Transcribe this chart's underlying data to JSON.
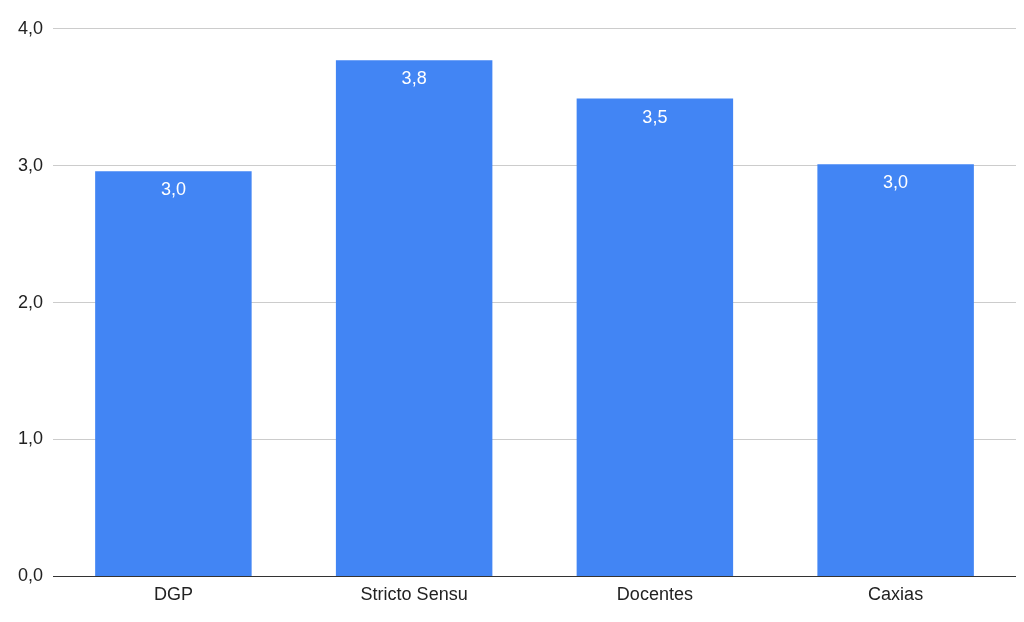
{
  "chart_data": {
    "type": "bar",
    "categories": [
      "DGP",
      "Stricto Sensu",
      "Docentes",
      "Caxias"
    ],
    "values": [
      2.96,
      3.77,
      3.49,
      3.01
    ],
    "value_labels": [
      "3,0",
      "3,8",
      "3,5",
      "3,0"
    ],
    "color": "#4285f4",
    "ylim": [
      0,
      4
    ],
    "yticks": [
      {
        "value": 0,
        "label": "0,0"
      },
      {
        "value": 1,
        "label": "1,0"
      },
      {
        "value": 2,
        "label": "2,0"
      },
      {
        "value": 3,
        "label": "3,0"
      },
      {
        "value": 4,
        "label": "4,0"
      }
    ],
    "grid": "y",
    "legend": false
  }
}
